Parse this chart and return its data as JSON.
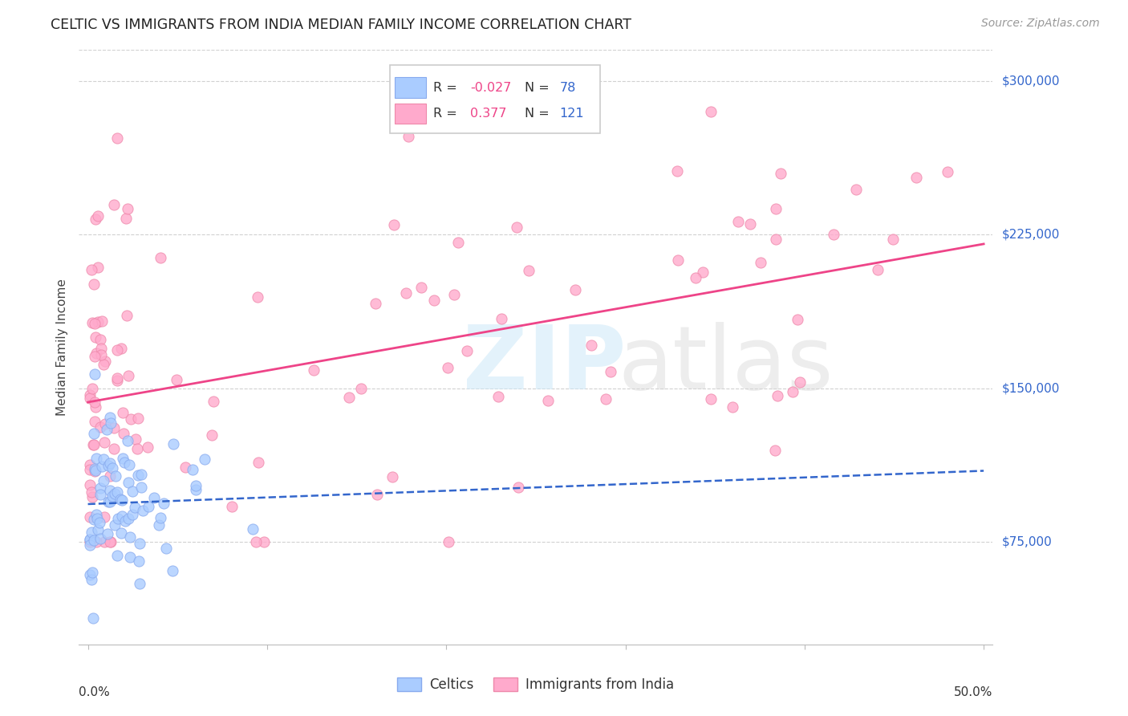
{
  "title": "CELTIC VS IMMIGRANTS FROM INDIA MEDIAN FAMILY INCOME CORRELATION CHART",
  "source": "Source: ZipAtlas.com",
  "ylabel": "Median Family Income",
  "yticks": [
    75000,
    150000,
    225000,
    300000
  ],
  "ytick_labels": [
    "$75,000",
    "$150,000",
    "$225,000",
    "$300,000"
  ],
  "xlim": [
    0.0,
    0.5
  ],
  "ylim": [
    25000,
    315000
  ],
  "celtic_color": "#aaccff",
  "celtic_edge": "#88aaee",
  "celtic_line_color": "#3366cc",
  "india_color": "#ffaacc",
  "india_edge": "#ee88aa",
  "india_line_color": "#ee4488",
  "grid_color": "#cccccc",
  "r_color": "#ee4488",
  "n_color": "#3366cc",
  "legend_text_color": "#333333",
  "ytick_color": "#3366cc",
  "title_color": "#222222",
  "source_color": "#999999",
  "celtic_R": -0.027,
  "celtic_N": 78,
  "india_R": 0.377,
  "india_N": 121,
  "celtic_trend_x": [
    0.0,
    0.5
  ],
  "celtic_trend_y": [
    100000,
    92000
  ],
  "india_trend_x": [
    0.0,
    0.5
  ],
  "india_trend_y": [
    120000,
    230000
  ]
}
